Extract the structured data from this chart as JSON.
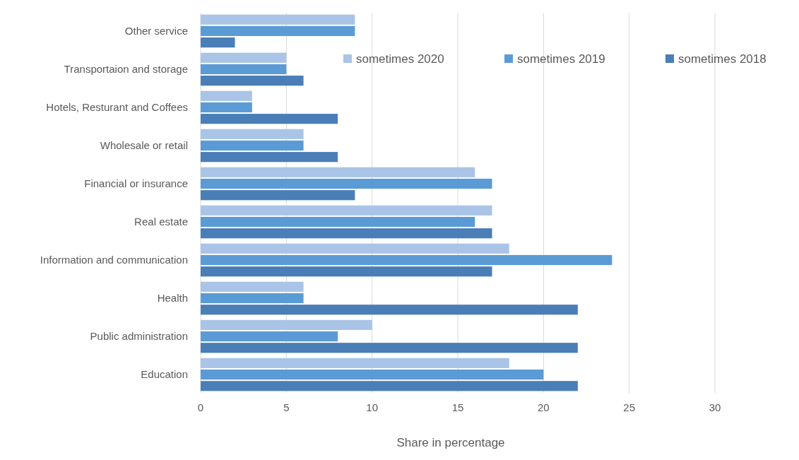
{
  "chart_data": {
    "type": "bar",
    "orientation": "horizontal",
    "xlabel": "Share in percentage",
    "categories": [
      "Other service",
      "Transportaion and storage",
      "Hotels, Resturant and Coffees",
      "Wholesale or retail",
      "Financial or insurance",
      "Real estate",
      "Information and communication",
      "Health",
      "Public administration",
      "Education"
    ],
    "series": [
      {
        "name": "sometimes 2020",
        "color": "#a9c4e6",
        "values": [
          9,
          5,
          3,
          6,
          16,
          17,
          18,
          6,
          10,
          18
        ]
      },
      {
        "name": "sometimes 2019",
        "color": "#5b9bd5",
        "values": [
          9,
          5,
          3,
          6,
          17,
          16,
          24,
          6,
          8,
          20
        ]
      },
      {
        "name": "sometimes 2018",
        "color": "#4a7eb6",
        "values": [
          2,
          6,
          8,
          8,
          9,
          17,
          17,
          22,
          22,
          22
        ]
      }
    ],
    "xlim": [
      0,
      30
    ],
    "xticks": [
      0,
      5,
      10,
      15,
      20,
      25,
      30
    ],
    "grid": "x",
    "legend": "top right"
  }
}
